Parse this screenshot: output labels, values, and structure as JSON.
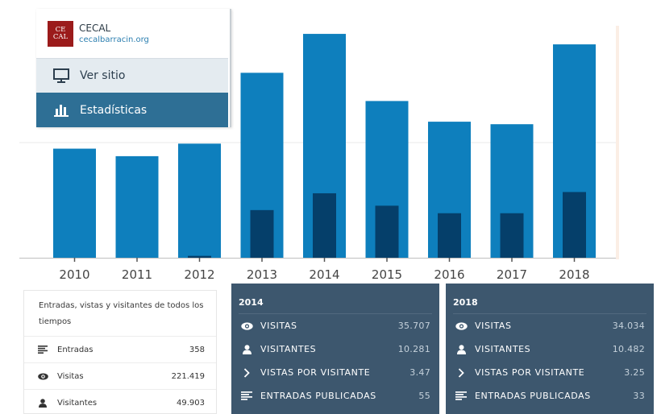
{
  "chart_data": {
    "type": "bar",
    "categories": [
      "2010",
      "2011",
      "2012",
      "2013",
      "2014",
      "2015",
      "2016",
      "2017",
      "2018"
    ],
    "series": [
      {
        "name": "Visitas",
        "color": "#0e7fbd",
        "values": [
          17400,
          16200,
          18200,
          29500,
          35707,
          25000,
          21700,
          21300,
          34034
        ]
      },
      {
        "name": "Visitantes",
        "color": "#053f6a",
        "values": [
          0,
          0,
          300,
          7600,
          10281,
          8300,
          7100,
          7100,
          10482
        ]
      }
    ],
    "ylim": [
      0,
      37000
    ],
    "grid": true
  },
  "site_menu": {
    "logo_line1": "CE",
    "logo_line2": "CAL",
    "site_name": "CECAL",
    "site_url": "cecalbarracin.org",
    "items": [
      {
        "label": "Ver sitio",
        "icon": "monitor-icon"
      },
      {
        "label": "Estadísticas",
        "icon": "bar-chart-icon"
      }
    ]
  },
  "alltime": {
    "title": "Entradas, vistas y visitantes de todos los tiempos",
    "rows": [
      {
        "label": "Entradas",
        "value": "358",
        "icon": "posts-icon"
      },
      {
        "label": "Visitas",
        "value": "221.419",
        "icon": "eye-icon"
      },
      {
        "label": "Visitantes",
        "value": "49.903",
        "icon": "person-icon"
      }
    ]
  },
  "year_panels": [
    {
      "year": "2014",
      "rows": [
        {
          "label": "VISITAS",
          "value": "35.707",
          "icon": "eye-icon"
        },
        {
          "label": "VISITANTES",
          "value": "10.281",
          "icon": "person-icon"
        },
        {
          "label": "VISTAS POR VISITANTE",
          "value": "3.47",
          "icon": "chevron-right-icon"
        },
        {
          "label": "ENTRADAS PUBLICADAS",
          "value": "55",
          "icon": "posts-icon"
        }
      ]
    },
    {
      "year": "2018",
      "rows": [
        {
          "label": "VISITAS",
          "value": "34.034",
          "icon": "eye-icon"
        },
        {
          "label": "VISITANTES",
          "value": "10.482",
          "icon": "person-icon"
        },
        {
          "label": "VISTAS POR VISITANTE",
          "value": "3.25",
          "icon": "chevron-right-icon"
        },
        {
          "label": "ENTRADAS PUBLICADAS",
          "value": "33",
          "icon": "posts-icon"
        }
      ]
    }
  ]
}
